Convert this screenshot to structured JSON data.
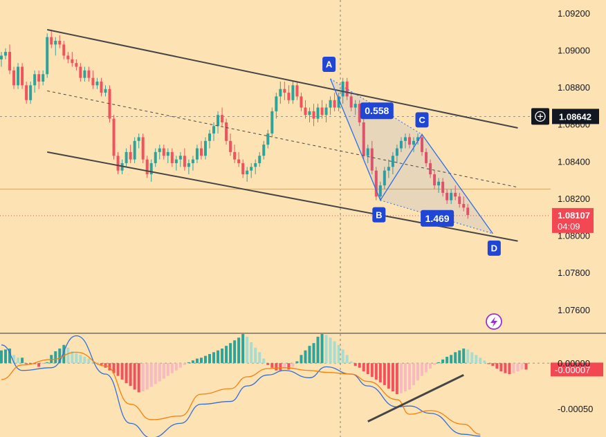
{
  "chart_data": {
    "type": "candlestick",
    "price_axis": {
      "ticks": [
        "1.09200",
        "1.09000",
        "1.08800",
        "1.08600",
        "1.08400",
        "1.08200",
        "1.08000",
        "1.07800",
        "1.07600"
      ],
      "range": [
        1.0748,
        1.0927
      ]
    },
    "crosshair_price_label": "1.08642",
    "current_price": {
      "value": "1.08107",
      "countdown": "04:09"
    },
    "support_level": 1.0825,
    "harmonic_pattern": {
      "points": [
        {
          "label": "A",
          "bar": 79,
          "price": 1.08845
        },
        {
          "label": "B",
          "bar": 91,
          "price": 1.0819
        },
        {
          "label": "C",
          "bar": 101,
          "price": 1.08545
        },
        {
          "label": "D",
          "bar": 118,
          "price": 1.0801
        }
      ],
      "ratios": [
        "0.558",
        "1.469"
      ]
    },
    "channel": {
      "upper": [
        [
          11,
          1.0911
        ],
        [
          124,
          1.0858
        ]
      ],
      "middle": [
        [
          11,
          1.0878
        ],
        [
          124,
          1.0826
        ]
      ],
      "lower": [
        [
          11,
          1.0845
        ],
        [
          124,
          1.0797
        ]
      ]
    },
    "candles": [
      [
        1.0895,
        1.0899,
        1.0891,
        1.0897
      ],
      [
        1.0897,
        1.0901,
        1.0895,
        1.0899
      ],
      [
        1.0899,
        1.0903,
        1.0887,
        1.0889
      ],
      [
        1.0889,
        1.0891,
        1.0879,
        1.0881
      ],
      [
        1.0881,
        1.0893,
        1.0879,
        1.0891
      ],
      [
        1.0891,
        1.0893,
        1.0879,
        1.0881
      ],
      [
        1.0881,
        1.0883,
        1.0871,
        1.0873
      ],
      [
        1.0873,
        1.0883,
        1.0871,
        1.0881
      ],
      [
        1.0881,
        1.0889,
        1.0877,
        1.0887
      ],
      [
        1.0887,
        1.0889,
        1.0879,
        1.0883
      ],
      [
        1.0883,
        1.0889,
        1.0881,
        1.0887
      ],
      [
        1.0887,
        1.0909,
        1.0885,
        1.0907
      ],
      [
        1.0907,
        1.0911,
        1.0901,
        1.0903
      ],
      [
        1.0903,
        1.0907,
        1.0897,
        1.0905
      ],
      [
        1.0905,
        1.0908,
        1.0901,
        1.0903
      ],
      [
        1.0903,
        1.0905,
        1.0895,
        1.0897
      ],
      [
        1.0897,
        1.0899,
        1.0893,
        1.0895
      ],
      [
        1.0895,
        1.0899,
        1.0891,
        1.0893
      ],
      [
        1.0893,
        1.0895,
        1.0889,
        1.0891
      ],
      [
        1.0891,
        1.0893,
        1.0883,
        1.0885
      ],
      [
        1.0885,
        1.0891,
        1.0883,
        1.0889
      ],
      [
        1.0889,
        1.0891,
        1.0883,
        1.0885
      ],
      [
        1.0885,
        1.0889,
        1.0879,
        1.0881
      ],
      [
        1.0881,
        1.0885,
        1.0879,
        1.0883
      ],
      [
        1.0883,
        1.0885,
        1.0875,
        1.0877
      ],
      [
        1.0877,
        1.0881,
        1.0875,
        1.0879
      ],
      [
        1.0879,
        1.0881,
        1.0861,
        1.0863
      ],
      [
        1.0863,
        1.0865,
        1.0841,
        1.0843
      ],
      [
        1.0843,
        1.0845,
        1.0833,
        1.0835
      ],
      [
        1.0835,
        1.0841,
        1.0833,
        1.0839
      ],
      [
        1.0839,
        1.0847,
        1.0837,
        1.0845
      ],
      [
        1.0845,
        1.0849,
        1.0839,
        1.0841
      ],
      [
        1.0841,
        1.0853,
        1.0839,
        1.0851
      ],
      [
        1.0851,
        1.0855,
        1.0847,
        1.0853
      ],
      [
        1.0853,
        1.0855,
        1.0839,
        1.0841
      ],
      [
        1.0841,
        1.0843,
        1.0831,
        1.0833
      ],
      [
        1.0833,
        1.0841,
        1.0829,
        1.0839
      ],
      [
        1.0839,
        1.0847,
        1.0837,
        1.0845
      ],
      [
        1.0845,
        1.0849,
        1.0841,
        1.0847
      ],
      [
        1.0847,
        1.0849,
        1.0841,
        1.0843
      ],
      [
        1.0843,
        1.0847,
        1.0839,
        1.0845
      ],
      [
        1.0845,
        1.0847,
        1.0837,
        1.0839
      ],
      [
        1.0839,
        1.0843,
        1.0835,
        1.0841
      ],
      [
        1.0841,
        1.0845,
        1.0837,
        1.0843
      ],
      [
        1.0843,
        1.0847,
        1.0835,
        1.0837
      ],
      [
        1.0837,
        1.0841,
        1.0833,
        1.0839
      ],
      [
        1.0839,
        1.0843,
        1.0835,
        1.0841
      ],
      [
        1.0841,
        1.0849,
        1.0839,
        1.0847
      ],
      [
        1.0847,
        1.0851,
        1.0841,
        1.0843
      ],
      [
        1.0843,
        1.0853,
        1.0841,
        1.0851
      ],
      [
        1.0851,
        1.0857,
        1.0847,
        1.0855
      ],
      [
        1.0855,
        1.0861,
        1.0851,
        1.0859
      ],
      [
        1.0859,
        1.0867,
        1.0855,
        1.0865
      ],
      [
        1.0865,
        1.0869,
        1.0859,
        1.0861
      ],
      [
        1.0861,
        1.0863,
        1.0849,
        1.0851
      ],
      [
        1.0851,
        1.0855,
        1.0843,
        1.0845
      ],
      [
        1.0845,
        1.0849,
        1.0839,
        1.0841
      ],
      [
        1.0841,
        1.0845,
        1.0837,
        1.0839
      ],
      [
        1.0839,
        1.0841,
        1.0831,
        1.0833
      ],
      [
        1.0833,
        1.0837,
        1.0829,
        1.0835
      ],
      [
        1.0835,
        1.0839,
        1.0831,
        1.0837
      ],
      [
        1.0837,
        1.0841,
        1.0833,
        1.0839
      ],
      [
        1.0839,
        1.0845,
        1.0837,
        1.0843
      ],
      [
        1.0843,
        1.0851,
        1.0841,
        1.0849
      ],
      [
        1.0849,
        1.0857,
        1.0847,
        1.0855
      ],
      [
        1.0855,
        1.0869,
        1.0853,
        1.0867
      ],
      [
        1.0867,
        1.0877,
        1.0863,
        1.0875
      ],
      [
        1.0875,
        1.0883,
        1.0871,
        1.0879
      ],
      [
        1.0879,
        1.0883,
        1.0873,
        1.0877
      ],
      [
        1.0877,
        1.0881,
        1.0871,
        1.0873
      ],
      [
        1.0873,
        1.0883,
        1.0871,
        1.0881
      ],
      [
        1.0881,
        1.0883,
        1.0873,
        1.0875
      ],
      [
        1.0875,
        1.0877,
        1.0867,
        1.0869
      ],
      [
        1.0869,
        1.0873,
        1.0863,
        1.0865
      ],
      [
        1.0865,
        1.0869,
        1.0861,
        1.0867
      ],
      [
        1.0867,
        1.0871,
        1.0859,
        1.0863
      ],
      [
        1.0863,
        1.0871,
        1.0861,
        1.0869
      ],
      [
        1.0869,
        1.0873,
        1.0863,
        1.0865
      ],
      [
        1.0865,
        1.0871,
        1.0861,
        1.0869
      ],
      [
        1.0869,
        1.0875,
        1.0865,
        1.0873
      ],
      [
        1.0873,
        1.0877,
        1.0867,
        1.0869
      ],
      [
        1.0869,
        1.0877,
        1.0867,
        1.0875
      ],
      [
        1.0875,
        1.0885,
        1.0871,
        1.0883
      ],
      [
        1.0883,
        1.0885,
        1.0873,
        1.0875
      ],
      [
        1.0875,
        1.0877,
        1.0867,
        1.0869
      ],
      [
        1.0869,
        1.0873,
        1.0865,
        1.0871
      ],
      [
        1.0871,
        1.0873,
        1.0859,
        1.0861
      ],
      [
        1.0861,
        1.0863,
        1.0841,
        1.0843
      ],
      [
        1.0843,
        1.0849,
        1.0839,
        1.0847
      ],
      [
        1.0847,
        1.0851,
        1.0833,
        1.0835
      ],
      [
        1.0835,
        1.0837,
        1.0819,
        1.0821
      ],
      [
        1.0821,
        1.0829,
        1.0819,
        1.0827
      ],
      [
        1.0827,
        1.0837,
        1.0825,
        1.0835
      ],
      [
        1.0835,
        1.0841,
        1.0831,
        1.0837
      ],
      [
        1.0837,
        1.0845,
        1.0833,
        1.0843
      ],
      [
        1.0843,
        1.0849,
        1.0839,
        1.0847
      ],
      [
        1.0847,
        1.0853,
        1.0845,
        1.0851
      ],
      [
        1.0851,
        1.0855,
        1.0847,
        1.0853
      ],
      [
        1.0853,
        1.0855,
        1.0847,
        1.0849
      ],
      [
        1.0849,
        1.0853,
        1.0845,
        1.0851
      ],
      [
        1.0851,
        1.0855,
        1.0849,
        1.0853
      ],
      [
        1.0853,
        1.0855,
        1.0843,
        1.0845
      ],
      [
        1.0845,
        1.0847,
        1.0837,
        1.0839
      ],
      [
        1.0839,
        1.0841,
        1.0831,
        1.0833
      ],
      [
        1.0833,
        1.0835,
        1.0825,
        1.0827
      ],
      [
        1.0827,
        1.0831,
        1.0823,
        1.0829
      ],
      [
        1.0829,
        1.0831,
        1.0821,
        1.0823
      ],
      [
        1.0823,
        1.0825,
        1.0817,
        1.0819
      ],
      [
        1.0819,
        1.0825,
        1.0817,
        1.0823
      ],
      [
        1.0823,
        1.0827,
        1.0819,
        1.0821
      ],
      [
        1.0821,
        1.0823,
        1.0815,
        1.0817
      ],
      [
        1.0817,
        1.0821,
        1.0813,
        1.0815
      ],
      [
        1.0815,
        1.0817,
        1.0809,
        1.0811
      ]
    ],
    "macd_axis": {
      "ticks": [
        "0.00000",
        "-0.00050"
      ],
      "range": [
        -0.00081,
        0.00032
      ]
    },
    "macd_value_label": "-0.00007",
    "macd_histogram": [
      0.00014,
      0.00015,
      0.00016,
      9e-05,
      6e-05,
      6e-05,
      -1e-05,
      0.0,
      -1e-05,
      -4e-05,
      -1e-05,
      1e-05,
      9e-05,
      0.00013,
      0.00016,
      0.0002,
      0.00017,
      0.00013,
      0.00011,
      9e-05,
      7e-05,
      5e-05,
      2e-05,
      0.0,
      -2e-05,
      -5e-05,
      -8e-05,
      -0.00011,
      -0.00014,
      -0.00018,
      -0.00022,
      -0.00025,
      -0.00029,
      -0.00032,
      -0.00031,
      -0.00029,
      -0.00026,
      -0.00023,
      -0.0002,
      -0.00017,
      -0.00014,
      -0.00011,
      -8e-05,
      -5e-05,
      -2e-05,
      1e-05,
      3e-05,
      5e-05,
      6e-05,
      8e-05,
      0.0001,
      0.00012,
      0.00014,
      0.00016,
      0.00019,
      0.00022,
      0.00025,
      0.00028,
      0.00032,
      0.00029,
      0.00023,
      0.00017,
      0.00012,
      5e-05,
      -2e-05,
      -5e-05,
      -8e-05,
      -8e-05,
      -6e-05,
      -7e-05,
      -4e-05,
      2e-05,
      9e-05,
      0.00014,
      0.00019,
      0.00022,
      0.00029,
      0.00032,
      0.00031,
      0.00028,
      0.00024,
      0.0002,
      0.00015,
      9e-05,
      2e-05,
      -3e-05,
      -5e-05,
      -9e-05,
      -0.00012,
      -0.00015,
      -0.00018,
      -0.00021,
      -0.00024,
      -0.00028,
      -0.00031,
      -0.00034,
      -0.00033,
      -0.00031,
      -0.00029,
      -0.00024,
      -0.00019,
      -0.00014,
      -0.0001,
      -6e-05,
      -2e-05,
      1e-05,
      4e-05,
      7e-05,
      9e-05,
      0.00012,
      0.00014,
      0.00016,
      0.00015,
      0.00012,
      9e-05,
      6e-05,
      3e-05,
      -1e-05,
      -3e-05,
      -6e-05,
      -9e-05,
      -0.00011,
      -0.00012,
      -0.00011,
      -9e-05,
      -7e-05,
      -7e-05
    ],
    "macd_line": [
      [
        0,
        0.0002
      ],
      [
        5,
        -8e-05
      ],
      [
        12,
        -5e-05
      ],
      [
        18,
        0.0003
      ],
      [
        25,
        -0.00012
      ],
      [
        31,
        -0.00066
      ],
      [
        36,
        -0.00082
      ],
      [
        43,
        -0.00066
      ],
      [
        48,
        -0.00045
      ],
      [
        55,
        -0.00042
      ],
      [
        59,
        -0.00025
      ],
      [
        64,
        -0.00013
      ],
      [
        68,
        -8e-05
      ],
      [
        74,
        -0.00016
      ],
      [
        78,
        -4e-05
      ],
      [
        84,
        -0.00012
      ],
      [
        88,
        -0.00025
      ],
      [
        95,
        -0.00048
      ],
      [
        98,
        -0.00047
      ],
      [
        103,
        -0.00055
      ],
      [
        111,
        -0.00078
      ],
      [
        115,
        -0.0008
      ]
    ],
    "signal_line": [
      [
        0,
        -0.00018
      ],
      [
        5,
        -2e-05
      ],
      [
        12,
        4e-05
      ],
      [
        18,
        0.00012
      ],
      [
        25,
        -3e-05
      ],
      [
        31,
        -0.00045
      ],
      [
        36,
        -0.00062
      ],
      [
        43,
        -0.00058
      ],
      [
        48,
        -0.00034
      ],
      [
        55,
        -0.00028
      ],
      [
        59,
        -0.00015
      ],
      [
        64,
        -6e-05
      ],
      [
        68,
        -5e-05
      ],
      [
        74,
        -8e-05
      ],
      [
        78,
        -0.0001
      ],
      [
        84,
        -0.00012
      ],
      [
        88,
        -0.0002
      ],
      [
        95,
        -0.0004
      ],
      [
        98,
        -0.00056
      ],
      [
        103,
        -0.00052
      ],
      [
        111,
        -0.00067
      ],
      [
        115,
        -0.00078
      ]
    ],
    "macd_trendline": [
      [
        88,
        -0.00064
      ],
      [
        111,
        -0.00013
      ]
    ]
  },
  "colors": {
    "background": "#fde3b4",
    "bull": "#2ea39a",
    "bull_light": "#a8dccf",
    "bear": "#f1525d",
    "bear_light": "#f8b9c0",
    "pattern": "#2b6de8",
    "label_bg": "#2046d6",
    "channel": "#454545",
    "support": "#f7a93b",
    "price_label": "#f14854",
    "macd": "#2f6ddc",
    "signal": "#f77f0a"
  },
  "icons": [
    "plus-circle-icon",
    "lightning-icon"
  ]
}
